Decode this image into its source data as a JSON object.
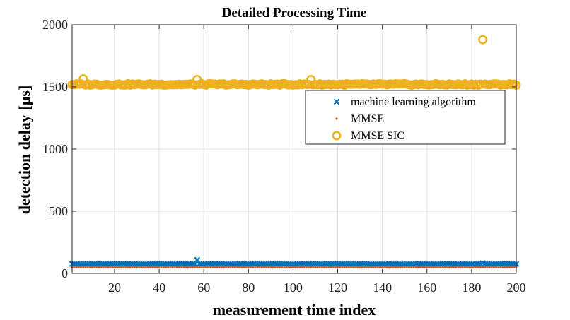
{
  "chart_data": {
    "type": "scatter",
    "title": "Detailed Processing Time",
    "xlabel": "measurement time index",
    "ylabel": "detection delay [µs]",
    "xlim": [
      1,
      200
    ],
    "ylim": [
      0,
      2000
    ],
    "xticks": [
      20,
      40,
      60,
      80,
      100,
      120,
      140,
      160,
      180,
      200
    ],
    "yticks": [
      0,
      500,
      1000,
      1500,
      2000
    ],
    "grid": true,
    "legend_position": "upper-right-inside",
    "x": "integers 1..200",
    "series": [
      {
        "name": "machine learning algorithm",
        "marker": "x",
        "color": "#0072BD",
        "baseline": 75,
        "outliers": [
          [
            57,
            108
          ],
          [
            185,
            82
          ]
        ]
      },
      {
        "name": "MMSE",
        "marker": "dot",
        "color": "#D95319",
        "baseline": 50,
        "outliers": []
      },
      {
        "name": "MMSE SIC",
        "marker": "circle",
        "color": "#EDB120",
        "baseline": 1520,
        "outliers": [
          [
            6,
            1565
          ],
          [
            57,
            1560
          ],
          [
            108,
            1560
          ],
          [
            185,
            1880
          ]
        ]
      }
    ]
  }
}
